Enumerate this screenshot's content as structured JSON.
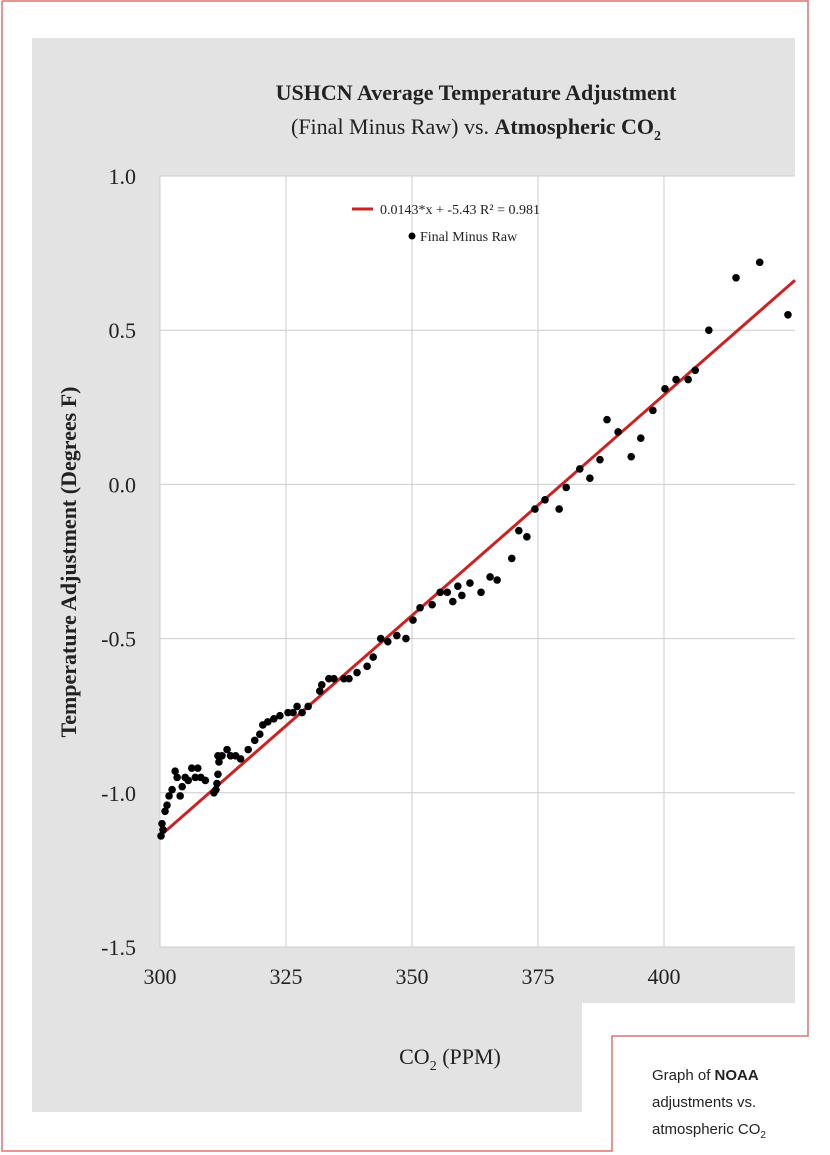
{
  "chart_data": {
    "type": "scatter",
    "title": "USHCN Average Temperature Adjustment",
    "subtitle_prefix": "(Final Minus Raw) vs. ",
    "subtitle_bold": "Atmospheric CO",
    "subtitle_sub": "2",
    "xlabel": "CO",
    "xlabel_sub": "2",
    "xlabel_suffix": " (PPM)",
    "ylabel": "Temperature Adjustment (Degrees F)",
    "xlim": [
      300,
      426
    ],
    "ylim": [
      -1.5,
      1.0
    ],
    "xticks": [
      "300",
      "325",
      "350",
      "375",
      "400"
    ],
    "xtick_values": [
      300,
      325,
      350,
      375,
      400
    ],
    "yticks": [
      "1.0",
      "0.5",
      "0.0",
      "-0.5",
      "-1.0",
      "-1.5"
    ],
    "ytick_values": [
      1.0,
      0.5,
      0.0,
      -0.5,
      -1.0,
      -1.5
    ],
    "grid": true,
    "legend_position": "top-center",
    "series": [
      {
        "name": "Final Minus Raw",
        "type": "scatter",
        "color": "#000000",
        "x": [
          300.2,
          300.6,
          300.4,
          301.0,
          301.4,
          301.8,
          302.4,
          303.0,
          303.4,
          304.0,
          304.4,
          305.0,
          305.6,
          306.3,
          307.0,
          307.5,
          308.1,
          309.0,
          310.7,
          311.1,
          311.3,
          311.5,
          311.7,
          311.5,
          312.3,
          313.3,
          314.0,
          315.0,
          316.0,
          317.5,
          318.8,
          319.8,
          320.4,
          321.4,
          322.6,
          323.8,
          325.4,
          326.4,
          327.2,
          328.2,
          329.4,
          331.7,
          332.1,
          333.5,
          334.5,
          336.5,
          337.5,
          339.1,
          341.1,
          342.3,
          343.8,
          345.2,
          347.0,
          348.8,
          350.2,
          351.6,
          354.0,
          355.6,
          357.0,
          358.1,
          359.1,
          359.9,
          361.5,
          363.7,
          365.5,
          366.9,
          369.8,
          371.2,
          372.8,
          374.4,
          376.4,
          379.2,
          380.6,
          383.3,
          385.3,
          387.3,
          388.7,
          390.9,
          393.5,
          395.4,
          397.8,
          400.2,
          402.4,
          404.8,
          406.2,
          408.9,
          414.3,
          419.0,
          424.6
        ],
        "y": [
          -1.14,
          -1.12,
          -1.1,
          -1.06,
          -1.04,
          -1.01,
          -0.99,
          -0.93,
          -0.95,
          -1.01,
          -0.98,
          -0.95,
          -0.96,
          -0.92,
          -0.95,
          -0.92,
          -0.95,
          -0.96,
          -1.0,
          -0.99,
          -0.97,
          -0.94,
          -0.9,
          -0.88,
          -0.88,
          -0.86,
          -0.88,
          -0.88,
          -0.89,
          -0.86,
          -0.83,
          -0.81,
          -0.78,
          -0.77,
          -0.76,
          -0.75,
          -0.74,
          -0.74,
          -0.72,
          -0.74,
          -0.72,
          -0.67,
          -0.65,
          -0.63,
          -0.63,
          -0.63,
          -0.63,
          -0.61,
          -0.59,
          -0.56,
          -0.5,
          -0.51,
          -0.49,
          -0.5,
          -0.44,
          -0.4,
          -0.39,
          -0.35,
          -0.35,
          -0.38,
          -0.33,
          -0.36,
          -0.32,
          -0.35,
          -0.3,
          -0.31,
          -0.24,
          -0.15,
          -0.17,
          -0.08,
          -0.05,
          -0.08,
          -0.01,
          0.05,
          0.02,
          0.08,
          0.21,
          0.17,
          0.09,
          0.15,
          0.24,
          0.31,
          0.34,
          0.34,
          0.37,
          0.5,
          0.67,
          0.72,
          0.55
        ]
      },
      {
        "name": "0.0143*x + -5.43 R² = 0.981",
        "type": "line",
        "color": "#cc2222",
        "slope": 0.0143,
        "intercept": -5.43,
        "r_squared": 0.981
      }
    ]
  },
  "caption": {
    "part1": "Graph of ",
    "part2": "NOAA",
    "part3": "adjustments vs.",
    "part4": "atmospheric CO",
    "part5": "2"
  },
  "colors": {
    "frame": "#e07070",
    "panel": "#e3e3e3",
    "grid": "#cccccc",
    "fit": "#cc2222"
  }
}
